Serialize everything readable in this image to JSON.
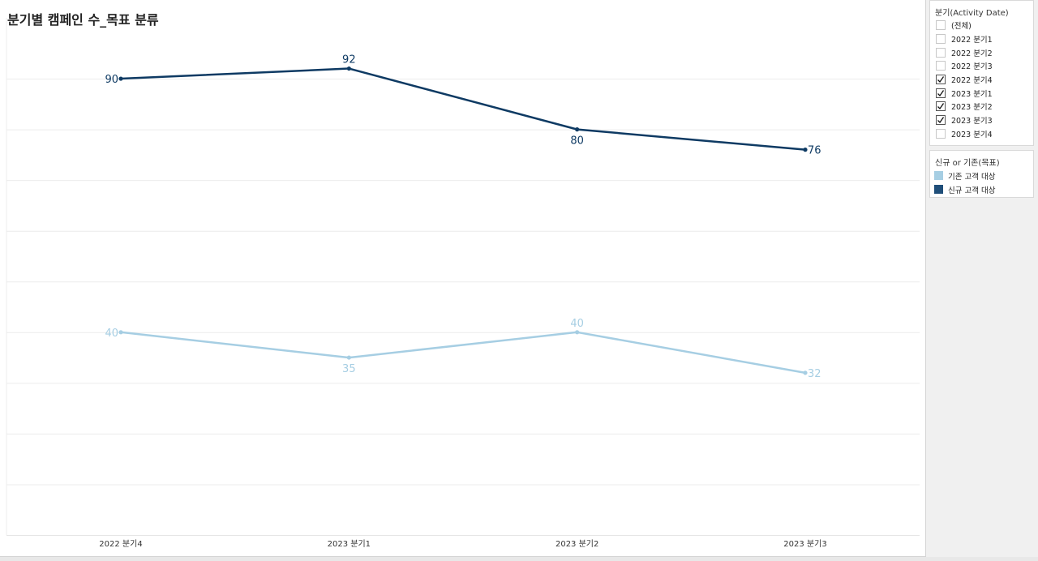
{
  "title": "분기별 캠페인 수_목표 분류",
  "filter": {
    "title": "분기(Activity Date)",
    "items": [
      {
        "label": "(전체)",
        "checked": false
      },
      {
        "label": "2022 분기1",
        "checked": false
      },
      {
        "label": "2022 분기2",
        "checked": false
      },
      {
        "label": "2022 분기3",
        "checked": false
      },
      {
        "label": "2022 분기4",
        "checked": true
      },
      {
        "label": "2023 분기1",
        "checked": true
      },
      {
        "label": "2023 분기2",
        "checked": true
      },
      {
        "label": "2023 분기3",
        "checked": true
      },
      {
        "label": "2023 분기4",
        "checked": false
      }
    ]
  },
  "legend": {
    "title": "신규 or 기존(목표)",
    "items": [
      {
        "label": "기존 고객 대상",
        "color": "#a6cee3"
      },
      {
        "label": "신규 고객 대상",
        "color": "#1f4e79"
      }
    ]
  },
  "chart_data": {
    "type": "line",
    "title": "분기별 캠페인 수_목표 분류",
    "categories": [
      "2022 분기4",
      "2023 분기1",
      "2023 분기2",
      "2023 분기3"
    ],
    "series": [
      {
        "name": "신규 고객 대상",
        "values": [
          90,
          92,
          80,
          76
        ],
        "color": "#0e3a63"
      },
      {
        "name": "기존 고객 대상",
        "values": [
          40,
          35,
          40,
          32
        ],
        "color": "#a6cee3"
      }
    ],
    "ylim": [
      0,
      102
    ],
    "grid": true,
    "legend_position": "right"
  }
}
